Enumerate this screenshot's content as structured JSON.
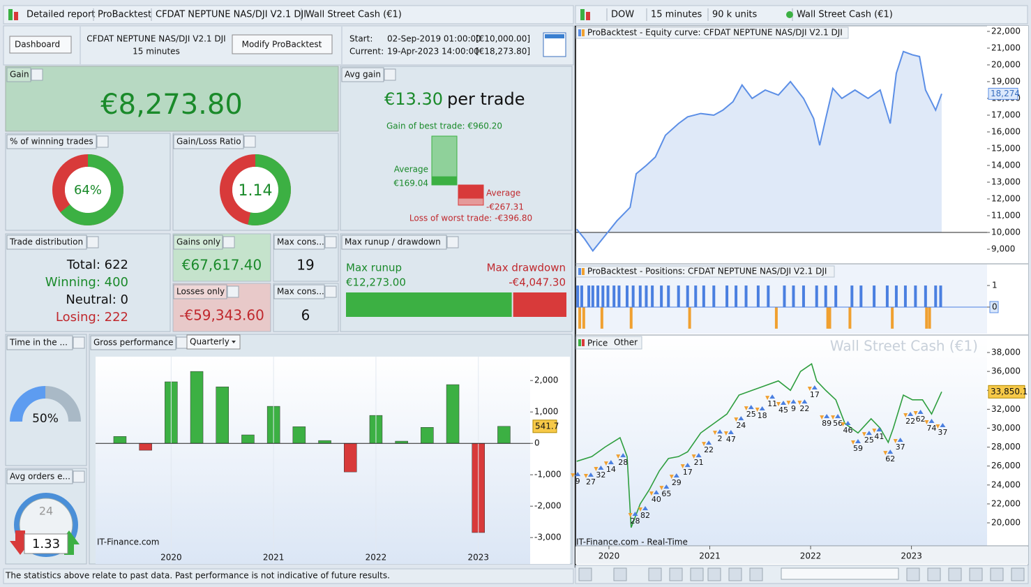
{
  "ui": {
    "left_tabs": [
      "Detailed report",
      "ProBacktest",
      "CFDAT NEPTUNE NAS/DJI V2.1 DJI",
      "Wall Street Cash (€1)"
    ],
    "dashboard": "Dashboard",
    "system_name": "CFDAT NEPTUNE NAS/DJI V2.1 DJI",
    "timeframe": "15 minutes",
    "modify_button": "Modify ProBacktest",
    "start_label": "Start:",
    "start_date": "02-Sep-2019 01:00:00",
    "start_capital": "[€10,000.00]",
    "current_label": "Current:",
    "current_date": "19-Apr-2023 14:00:00",
    "current_capital": "[€18,273.80]",
    "gain": {
      "title": "Gain",
      "value": "€8,273.80"
    },
    "avg_gain": {
      "title": "Avg gain",
      "value": "€13.30",
      "unit": "per trade",
      "best": 960.2,
      "best_label": "Gain of best trade: €960.20",
      "avg_win_word": "Average",
      "avg_win": 169.04,
      "avg_win_label": "€169.04",
      "avg_loss_word": "Average",
      "avg_loss": -267.31,
      "avg_loss_label": "-€267.31",
      "worst": -396.8,
      "worst_label": "Loss of worst trade: -€396.80"
    },
    "winning": {
      "title": "% of winning trades",
      "value": 64,
      "label": "64%"
    },
    "ratio": {
      "title": "Gain/Loss Ratio",
      "value": 1.14
    },
    "distribution": {
      "title": "Trade distribution",
      "lines": [
        "Total: 622",
        "Winning: 400",
        "Neutral: 0",
        "Losing: 222"
      ]
    },
    "gains_only": {
      "title": "Gains only",
      "value": "€67,617.40"
    },
    "max_cons_wins": {
      "title": "Max cons...",
      "value": 19
    },
    "losses_only": {
      "title": "Losses only",
      "value": "-€59,343.60"
    },
    "max_cons_losses": {
      "title": "Max cons...",
      "value": 6
    },
    "runup": {
      "title": "Max runup / drawdown",
      "runup_label": "Max runup",
      "runup": 12273.0,
      "runup_text": "€12,273.00",
      "drawdown_label": "Max drawdown",
      "drawdown": -4047.3,
      "drawdown_text": "-€4,047.30"
    },
    "time_in_market": {
      "title": "Time in the ...",
      "value": 50,
      "label": "50%"
    },
    "avg_orders": {
      "title": "Avg orders e...",
      "value": 1.33,
      "clock": "24"
    },
    "gross_title": "Gross performance",
    "period": "Quarterly",
    "source_left": "IT-Finance.com",
    "disclaimer": "The statistics above relate to past data. Past performance is not indicative of future results.",
    "right_toolbar": [
      "DOW",
      "15 minutes",
      "90 k units",
      "Wall Street Cash (€1)"
    ],
    "equity_title": "ProBacktest - Equity curve: CFDAT NEPTUNE NAS/DJI V2.1 DJI",
    "positions_title": "ProBacktest - Positions: CFDAT NEPTUNE NAS/DJI V2.1 DJI",
    "price_tab": "Price",
    "other_tab": "Other",
    "watermark": "Wall Street Cash (€1)",
    "source_right": "IT-Finance.com - Real-Time"
  },
  "chart_data": [
    {
      "type": "bar",
      "categories": [
        null,
        null,
        "2020",
        null,
        null,
        null,
        "2021",
        null,
        null,
        null,
        "2022",
        null,
        null,
        null,
        "2023",
        null
      ],
      "values": [
        220,
        -220,
        1960,
        2290,
        1800,
        270,
        1180,
        530,
        90,
        -910,
        890,
        70,
        510,
        1870,
        -2840,
        541.7
      ],
      "value_labels": [
        null,
        null,
        null,
        null,
        null,
        null,
        null,
        null,
        null,
        null,
        null,
        null,
        null,
        null,
        null,
        "541.7"
      ],
      "colors": {
        "positive": "#3cb043",
        "negative": "#d83a3a"
      },
      "ylim": [
        -3840,
        2760
      ],
      "yticks": [
        {
          "value": -3000,
          "label": "-3,000"
        },
        {
          "value": -2000,
          "label": "-2,000"
        },
        {
          "value": -1000,
          "label": "-1,000"
        },
        0,
        {
          "value": 1000,
          "label": "1,000"
        },
        {
          "value": 2000,
          "label": "2,000"
        }
      ]
    },
    {
      "type": "area",
      "color": "#5b8ee6",
      "fill": "#dfe9f8",
      "x": [
        2019.68,
        2019.76,
        2019.84,
        2019.96,
        2020.08,
        2020.21,
        2020.27,
        2020.37,
        2020.46,
        2020.56,
        2020.69,
        2020.78,
        2020.91,
        2021.04,
        2021.13,
        2021.23,
        2021.32,
        2021.42,
        2021.55,
        2021.68,
        2021.8,
        2021.93,
        2022.03,
        2022.09,
        2022.15,
        2022.22,
        2022.31,
        2022.44,
        2022.57,
        2022.69,
        2022.79,
        2022.85,
        2022.92,
        2023.01,
        2023.08,
        2023.14,
        2023.24,
        2023.3
      ],
      "values": [
        10200,
        9600,
        8900,
        9800,
        10700,
        11500,
        13500,
        14000,
        14500,
        15800,
        16500,
        16900,
        17100,
        17000,
        17300,
        17800,
        18800,
        18000,
        18500,
        18200,
        19000,
        18000,
        16800,
        15200,
        16800,
        18600,
        18000,
        18500,
        18000,
        18500,
        16500,
        19500,
        20800,
        20600,
        20500,
        18500,
        17300,
        18274
      ],
      "value_labels": [
        null,
        null,
        null,
        null,
        null,
        null,
        null,
        null,
        null,
        null,
        null,
        null,
        null,
        null,
        null,
        null,
        null,
        null,
        null,
        null,
        null,
        null,
        null,
        null,
        null,
        null,
        null,
        null,
        null,
        null,
        null,
        null,
        null,
        null,
        null,
        null,
        null,
        "18,274"
      ],
      "baseline": 10000,
      "xlim": [
        2019.675,
        2023.75
      ],
      "ylim": [
        8210,
        22290
      ],
      "yticks": [
        {
          "value": 9000,
          "label": "9,000"
        },
        {
          "value": 10000,
          "label": "10,000"
        },
        {
          "value": 11000,
          "label": "11,000"
        },
        {
          "value": 12000,
          "label": "12,000"
        },
        {
          "value": 13000,
          "label": "13,000"
        },
        {
          "value": 14000,
          "label": "14,000"
        },
        {
          "value": 15000,
          "label": "15,000"
        },
        {
          "value": 16000,
          "label": "16,000"
        },
        {
          "value": 17000,
          "label": "17,000"
        },
        {
          "value": 18000,
          "label": "18,000"
        },
        {
          "value": 19000,
          "label": "19,000"
        },
        {
          "value": 20000,
          "label": "20,000"
        },
        {
          "value": 21000,
          "label": "21,000"
        },
        {
          "value": 22000,
          "label": "22,000"
        }
      ]
    },
    {
      "type": "bar",
      "colors": {
        "positive": "#4a7fe0",
        "negative": "#f0a030"
      },
      "x": [
        2019.69,
        2019.71,
        2019.73,
        2019.75,
        2019.8,
        2019.84,
        2019.89,
        2019.93,
        2019.94,
        2019.99,
        2020.05,
        2020.1,
        2020.18,
        2020.22,
        2020.24,
        2020.31,
        2020.37,
        2020.43,
        2020.52,
        2020.59,
        2020.69,
        2020.78,
        2020.8,
        2020.86,
        2020.94,
        2021.04,
        2021.17,
        2021.26,
        2021.36,
        2021.48,
        2021.58,
        2021.66,
        2021.74,
        2021.83,
        2021.93,
        2022.06,
        2022.15,
        2022.17,
        2022.19,
        2022.25,
        2022.39,
        2022.41,
        2022.5,
        2022.63,
        2022.76,
        2022.81,
        2022.85,
        2022.94,
        2023.04,
        2023.14,
        2023.15,
        2023.18,
        2023.24,
        2023.29
      ],
      "values": [
        1,
        -1,
        1,
        -1,
        1,
        1,
        1,
        -1,
        1,
        1,
        1,
        1,
        1,
        -1,
        1,
        1,
        1,
        1,
        1,
        1,
        1,
        1,
        -1,
        1,
        1,
        1,
        1,
        1,
        1,
        1,
        1,
        -1,
        1,
        1,
        1,
        1,
        1,
        -1,
        -1,
        1,
        -1,
        1,
        1,
        1,
        1,
        -1,
        1,
        1,
        1,
        1,
        -1,
        -1,
        1,
        1
      ],
      "xlim": [
        2019.675,
        2023.75
      ],
      "ylim": [
        -1.23,
        1.94
      ],
      "yticks": [
        1,
        0
      ]
    },
    {
      "type": "line",
      "color": "#2e9e3e",
      "x": [
        2019.68,
        2019.83,
        2019.96,
        2020.11,
        2020.18,
        2020.22,
        2020.31,
        2020.4,
        2020.5,
        2020.59,
        2020.69,
        2020.78,
        2020.91,
        2021.04,
        2021.17,
        2021.29,
        2021.42,
        2021.55,
        2021.68,
        2021.8,
        2021.9,
        2022.01,
        2022.06,
        2022.15,
        2022.25,
        2022.34,
        2022.47,
        2022.6,
        2022.69,
        2022.77,
        2022.82,
        2022.92,
        2023.01,
        2023.11,
        2023.2,
        2023.3
      ],
      "values": [
        26500,
        27000,
        28000,
        29000,
        27000,
        19500,
        22000,
        23500,
        25500,
        26800,
        27000,
        27500,
        29500,
        30500,
        31500,
        33500,
        34000,
        34500,
        35000,
        34000,
        36000,
        36800,
        35000,
        34000,
        33000,
        30500,
        29500,
        31000,
        30000,
        28500,
        30000,
        33500,
        33000,
        33000,
        31500,
        33850.1
      ],
      "value_labels": [
        null,
        null,
        null,
        null,
        null,
        null,
        null,
        null,
        null,
        null,
        null,
        null,
        null,
        null,
        null,
        null,
        null,
        null,
        null,
        null,
        null,
        null,
        null,
        null,
        null,
        null,
        null,
        null,
        null,
        null,
        null,
        null,
        null,
        null,
        null,
        "33,850.1"
      ],
      "xlim": [
        2019.675,
        2023.75
      ],
      "ylim": [
        17570,
        39700
      ],
      "xticks": [
        2020,
        2021,
        2022,
        2023
      ],
      "yticks": [
        {
          "value": 20000,
          "label": "20,000"
        },
        {
          "value": 22000,
          "label": "22,000"
        },
        {
          "value": 24000,
          "label": "24,000"
        },
        {
          "value": 26000,
          "label": "26,000"
        },
        {
          "value": 28000,
          "label": "28,000"
        },
        {
          "value": 30000,
          "label": "30,000"
        },
        {
          "value": 32000,
          "label": "32,000"
        },
        {
          "value": 34000,
          "label": "34,000"
        },
        {
          "value": 36000,
          "label": "36,000"
        },
        {
          "value": 38000,
          "label": "38,000"
        }
      ],
      "annotations": [
        {
          "x": 2019.69,
          "y": 24350,
          "label": "9"
        },
        {
          "x": 2019.82,
          "y": 24280,
          "label": "27"
        },
        {
          "x": 2019.92,
          "y": 25020,
          "label": "32"
        },
        {
          "x": 2020.02,
          "y": 25600,
          "label": "14"
        },
        {
          "x": 2020.14,
          "y": 26340,
          "label": "28"
        },
        {
          "x": 2020.26,
          "y": 20150,
          "label": "28"
        },
        {
          "x": 2020.36,
          "y": 20740,
          "label": "82"
        },
        {
          "x": 2020.47,
          "y": 22430,
          "label": "40"
        },
        {
          "x": 2020.57,
          "y": 23020,
          "label": "65"
        },
        {
          "x": 2020.67,
          "y": 24200,
          "label": "29"
        },
        {
          "x": 2020.78,
          "y": 25310,
          "label": "17"
        },
        {
          "x": 2020.89,
          "y": 26340,
          "label": "21"
        },
        {
          "x": 2020.99,
          "y": 27670,
          "label": "22"
        },
        {
          "x": 2021.1,
          "y": 28850,
          "label": "2"
        },
        {
          "x": 2021.21,
          "y": 28780,
          "label": "47"
        },
        {
          "x": 2021.31,
          "y": 30250,
          "label": "24"
        },
        {
          "x": 2021.41,
          "y": 31430,
          "label": "25"
        },
        {
          "x": 2021.52,
          "y": 31290,
          "label": "18"
        },
        {
          "x": 2021.62,
          "y": 32540,
          "label": "11"
        },
        {
          "x": 2021.73,
          "y": 31880,
          "label": "45"
        },
        {
          "x": 2021.83,
          "y": 32020,
          "label": "9"
        },
        {
          "x": 2021.94,
          "y": 32020,
          "label": "22"
        },
        {
          "x": 2022.04,
          "y": 33500,
          "label": "17"
        },
        {
          "x": 2022.16,
          "y": 30470,
          "label": "89"
        },
        {
          "x": 2022.27,
          "y": 30470,
          "label": "56"
        },
        {
          "x": 2022.37,
          "y": 29740,
          "label": "46"
        },
        {
          "x": 2022.47,
          "y": 27820,
          "label": "59"
        },
        {
          "x": 2022.58,
          "y": 28700,
          "label": "25"
        },
        {
          "x": 2022.68,
          "y": 29070,
          "label": "41"
        },
        {
          "x": 2022.79,
          "y": 26710,
          "label": "62"
        },
        {
          "x": 2022.89,
          "y": 27970,
          "label": "37"
        },
        {
          "x": 2022.99,
          "y": 30700,
          "label": "22"
        },
        {
          "x": 2023.09,
          "y": 30920,
          "label": "62"
        },
        {
          "x": 2023.2,
          "y": 29960,
          "label": "74"
        },
        {
          "x": 2023.31,
          "y": 29520,
          "label": "37"
        }
      ]
    }
  ]
}
